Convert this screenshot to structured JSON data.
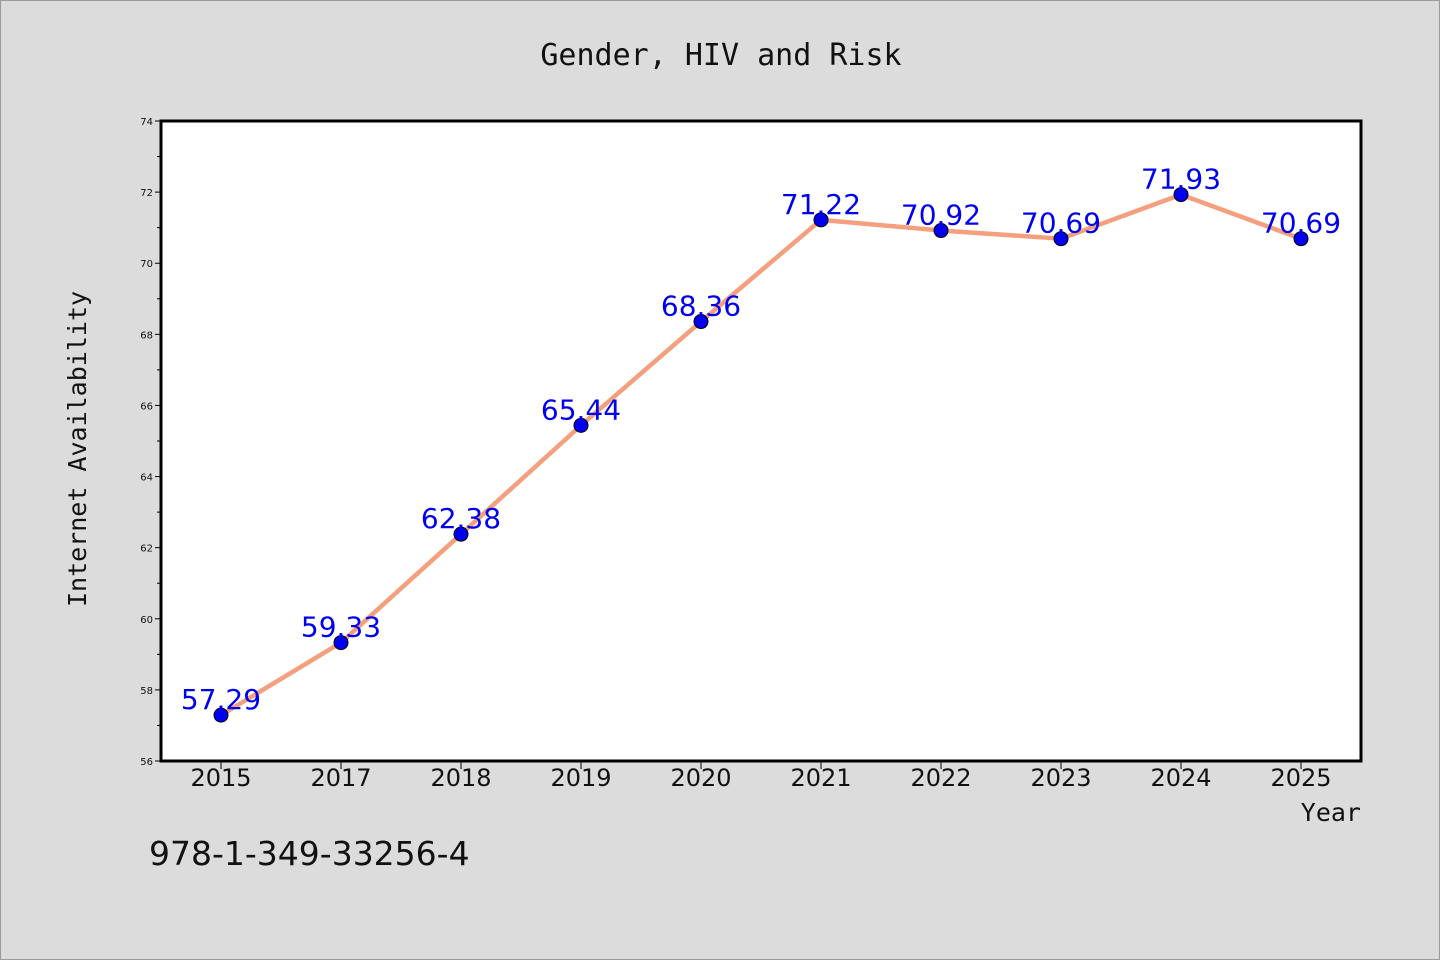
{
  "chart_data": {
    "type": "line",
    "title": "Gender, HIV and Risk",
    "xlabel": "Year",
    "ylabel": "Internet Availability",
    "categories": [
      "2015",
      "2017",
      "2018",
      "2019",
      "2020",
      "2021",
      "2022",
      "2023",
      "2024",
      "2025"
    ],
    "series": [
      {
        "values": [
          57.29,
          59.33,
          62.38,
          65.44,
          68.36,
          71.22,
          70.92,
          70.69,
          71.93,
          70.69
        ]
      }
    ],
    "data_labels": [
      "57.29",
      "59.33",
      "62.38",
      "65.44",
      "68.36",
      "71.22",
      "70.92",
      "70.69",
      "71.93",
      "70.69"
    ],
    "ylim": [
      56,
      74
    ],
    "yticks": [
      "56",
      "58",
      "60",
      "62",
      "64",
      "66",
      "68",
      "70",
      "72",
      "74"
    ],
    "grid": false,
    "legend": "none",
    "colors": {
      "line": "#f4a07f",
      "marker": "#0000ee",
      "data_label": "#0000ee",
      "plot_background": "#ffffff",
      "figure_background": "#dcdcdc"
    }
  },
  "footer": {
    "isbn": "978-1-349-33256-4"
  }
}
